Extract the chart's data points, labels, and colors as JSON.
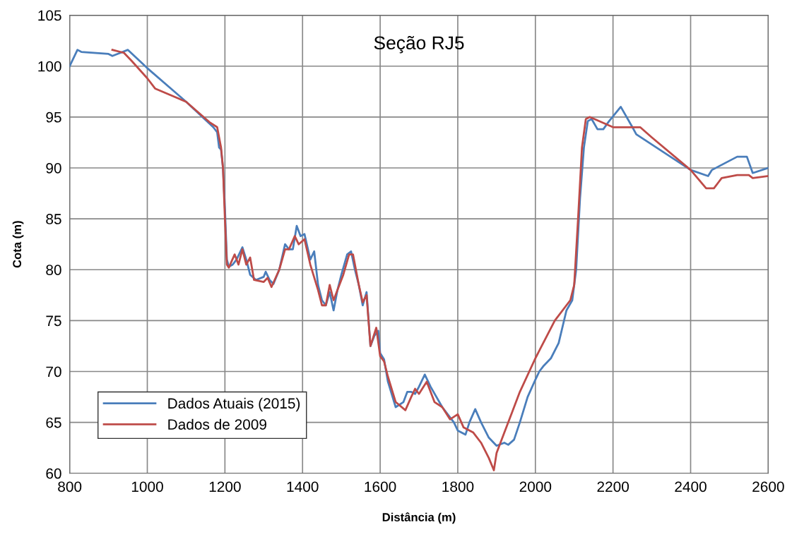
{
  "chart_data": {
    "type": "line",
    "title": "Seção RJ5",
    "xlabel": "Distância (m)",
    "ylabel": "Cota (m)",
    "xlim": [
      800,
      2600
    ],
    "ylim": [
      60,
      105
    ],
    "xticks": [
      800,
      1000,
      1200,
      1400,
      1600,
      1800,
      2000,
      2200,
      2400,
      2600
    ],
    "yticks": [
      60,
      65,
      70,
      75,
      80,
      85,
      90,
      95,
      100,
      105
    ],
    "grid": true,
    "legend": "bottom left",
    "marker": "none",
    "line_style": "solid",
    "series": [
      {
        "name": "Dados Atuais (2015)",
        "color": "#4a7ebb",
        "x": [
          800,
          820,
          830,
          900,
          910,
          930,
          950,
          1000,
          1100,
          1170,
          1180,
          1185,
          1190,
          1195,
          1200,
          1205,
          1210,
          1220,
          1230,
          1245,
          1255,
          1265,
          1280,
          1300,
          1305,
          1315,
          1325,
          1340,
          1355,
          1365,
          1375,
          1385,
          1395,
          1405,
          1420,
          1430,
          1440,
          1450,
          1460,
          1470,
          1480,
          1490,
          1500,
          1515,
          1525,
          1535,
          1545,
          1555,
          1565,
          1575,
          1585,
          1595,
          1600,
          1610,
          1620,
          1640,
          1660,
          1670,
          1680,
          1690,
          1700,
          1715,
          1730,
          1760,
          1790,
          1800,
          1820,
          1830,
          1845,
          1860,
          1880,
          1900,
          1920,
          1930,
          1945,
          1960,
          1980,
          2000,
          2010,
          2020,
          2040,
          2060,
          2080,
          2095,
          2105,
          2115,
          2125,
          2135,
          2145,
          2160,
          2175,
          2190,
          2220,
          2250,
          2260,
          2400,
          2445,
          2455,
          2520,
          2545,
          2560,
          2600
        ],
        "values": [
          100,
          101.6,
          101.4,
          101.2,
          101.0,
          101.3,
          101.6,
          99.8,
          96.5,
          94.0,
          93.5,
          92.0,
          91.8,
          90,
          86,
          81,
          80.3,
          80.5,
          81.0,
          82.2,
          81.0,
          79.5,
          79.0,
          79.3,
          79.8,
          79.0,
          78.6,
          80.0,
          82.5,
          82.0,
          82.0,
          84.3,
          83.3,
          83.5,
          81.0,
          81.8,
          78.5,
          77.0,
          76.5,
          77.8,
          76.0,
          78.0,
          79.5,
          81.5,
          81.8,
          80.0,
          78.5,
          76.5,
          77.8,
          72.5,
          73.5,
          74.0,
          71.8,
          71.2,
          69.0,
          66.5,
          67.0,
          68.0,
          68.0,
          67.8,
          68.5,
          69.7,
          68.5,
          66.5,
          65.0,
          64.2,
          63.8,
          65.0,
          66.3,
          65.0,
          63.5,
          62.7,
          63.0,
          62.8,
          63.3,
          65.0,
          67.5,
          69.2,
          70.0,
          70.5,
          71.3,
          72.8,
          76,
          77,
          80,
          87,
          92,
          94.6,
          94.8,
          93.8,
          93.8,
          94.6,
          96.0,
          94.0,
          93.3,
          89.8,
          89.2,
          89.8,
          91.1,
          91.1,
          89.5,
          90.0
        ]
      },
      {
        "name": "Dados de 2009",
        "color": "#be4b48",
        "x": [
          910,
          930,
          940,
          960,
          1000,
          1020,
          1100,
          1160,
          1180,
          1185,
          1190,
          1195,
          1200,
          1205,
          1210,
          1225,
          1235,
          1245,
          1255,
          1265,
          1275,
          1300,
          1310,
          1320,
          1340,
          1355,
          1365,
          1380,
          1390,
          1405,
          1420,
          1440,
          1450,
          1460,
          1470,
          1480,
          1490,
          1505,
          1520,
          1530,
          1545,
          1555,
          1565,
          1575,
          1590,
          1600,
          1610,
          1620,
          1640,
          1665,
          1680,
          1690,
          1700,
          1720,
          1740,
          1760,
          1780,
          1800,
          1815,
          1840,
          1860,
          1880,
          1893,
          1900,
          1920,
          1940,
          1960,
          2000,
          2050,
          2090,
          2100,
          2110,
          2120,
          2130,
          2140,
          2200,
          2270,
          2300,
          2400,
          2440,
          2460,
          2480,
          2520,
          2550,
          2560,
          2600
        ],
        "values": [
          101.6,
          101.4,
          101.3,
          100.5,
          98.8,
          97.8,
          96.5,
          94.5,
          94.0,
          93.0,
          92,
          90,
          85,
          80.5,
          80.2,
          81.5,
          80.5,
          82,
          80.5,
          81.2,
          79.0,
          78.8,
          79.2,
          78.3,
          80.0,
          82,
          82.0,
          83.3,
          82.5,
          83.0,
          80.5,
          78,
          76.5,
          76.5,
          78.5,
          77.0,
          78,
          79.5,
          81.5,
          81.5,
          78.5,
          76.8,
          77.5,
          72.5,
          74.3,
          71.5,
          71.0,
          69.5,
          67,
          66.2,
          67.5,
          68.3,
          67.8,
          69.0,
          67.0,
          66.5,
          65.3,
          65.8,
          64.5,
          64,
          63,
          61.5,
          60.3,
          62,
          64,
          66.0,
          68.0,
          71.3,
          75,
          77,
          78.5,
          85,
          92,
          94.8,
          95.0,
          94.0,
          94.0,
          93.0,
          89.8,
          88.0,
          88.0,
          89.0,
          89.3,
          89.3,
          89.0,
          89.2
        ]
      }
    ]
  }
}
